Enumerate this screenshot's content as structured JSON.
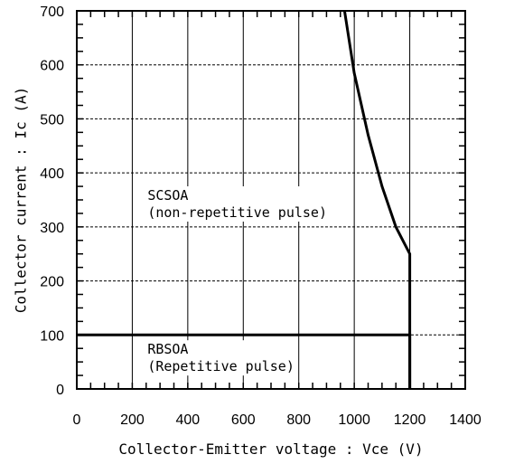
{
  "chart_data": {
    "type": "line",
    "title": "",
    "xlabel": "Collector-Emitter voltage : Vce (V)",
    "ylabel": "Collector current : Ic (A)",
    "xlim": [
      0,
      1400
    ],
    "ylim": [
      0,
      700
    ],
    "xticks": [
      0,
      200,
      400,
      600,
      800,
      1000,
      1200,
      1400
    ],
    "yticks": [
      0,
      100,
      200,
      300,
      400,
      500,
      600,
      700
    ],
    "x_tick_labels": [
      "0",
      "200",
      "400",
      "600",
      "800",
      "1000",
      "1200",
      "1400"
    ],
    "y_tick_labels": [
      "0",
      "100",
      "200",
      "300",
      "400",
      "500",
      "600",
      "700"
    ],
    "grid": true,
    "series": [
      {
        "values": [
          [
            0,
            100
          ],
          [
            1200,
            100
          ],
          [
            1200,
            0
          ]
        ]
      },
      {
        "values": [
          [
            965,
            700
          ],
          [
            1000,
            585
          ],
          [
            1050,
            470
          ],
          [
            1100,
            375
          ],
          [
            1150,
            300
          ],
          [
            1200,
            250
          ],
          [
            1200,
            0
          ]
        ]
      }
    ],
    "annotations": [
      {
        "lines": [
          "SCSOA",
          "(non-repetitive pulse)"
        ],
        "anchor": [
          255,
          350
        ]
      },
      {
        "lines": [
          "RBSOA",
          "(Repetitive pulse)"
        ],
        "anchor": [
          255,
          65
        ]
      }
    ]
  }
}
